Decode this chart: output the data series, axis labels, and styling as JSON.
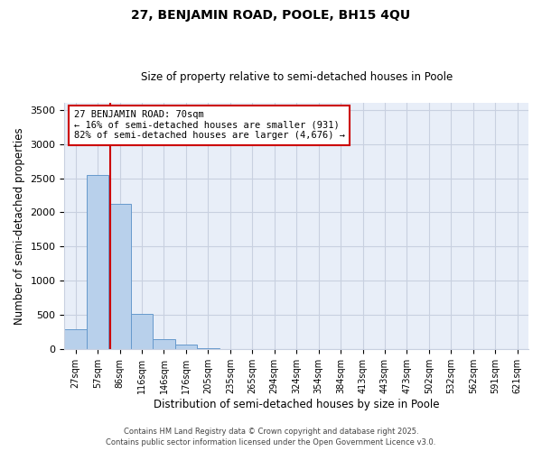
{
  "title": "27, BENJAMIN ROAD, POOLE, BH15 4QU",
  "subtitle": "Size of property relative to semi-detached houses in Poole",
  "xlabel": "Distribution of semi-detached houses by size in Poole",
  "ylabel": "Number of semi-detached properties",
  "bar_labels": [
    "27sqm",
    "57sqm",
    "86sqm",
    "116sqm",
    "146sqm",
    "176sqm",
    "205sqm",
    "235sqm",
    "265sqm",
    "294sqm",
    "324sqm",
    "354sqm",
    "384sqm",
    "413sqm",
    "443sqm",
    "473sqm",
    "502sqm",
    "532sqm",
    "562sqm",
    "591sqm",
    "621sqm"
  ],
  "bar_values": [
    300,
    2540,
    2130,
    520,
    155,
    65,
    15,
    5,
    0,
    0,
    0,
    0,
    0,
    0,
    0,
    0,
    0,
    0,
    0,
    0,
    0
  ],
  "bar_color": "#b8d0eb",
  "bar_edge_color": "#6699cc",
  "property_line_x": 1.55,
  "property_line_color": "#cc0000",
  "ylim": [
    0,
    3600
  ],
  "yticks": [
    0,
    500,
    1000,
    1500,
    2000,
    2500,
    3000,
    3500
  ],
  "annotation_title": "27 BENJAMIN ROAD: 70sqm",
  "annotation_line1": "← 16% of semi-detached houses are smaller (931)",
  "annotation_line2": "82% of semi-detached houses are larger (4,676) →",
  "annotation_box_color": "#ffffff",
  "annotation_box_edge": "#cc0000",
  "footer1": "Contains HM Land Registry data © Crown copyright and database right 2025.",
  "footer2": "Contains public sector information licensed under the Open Government Licence v3.0.",
  "bg_color": "#e8eef8",
  "grid_color": "#c8d0e0",
  "title_fontsize": 10,
  "subtitle_fontsize": 8.5,
  "footer_fontsize": 6.0
}
